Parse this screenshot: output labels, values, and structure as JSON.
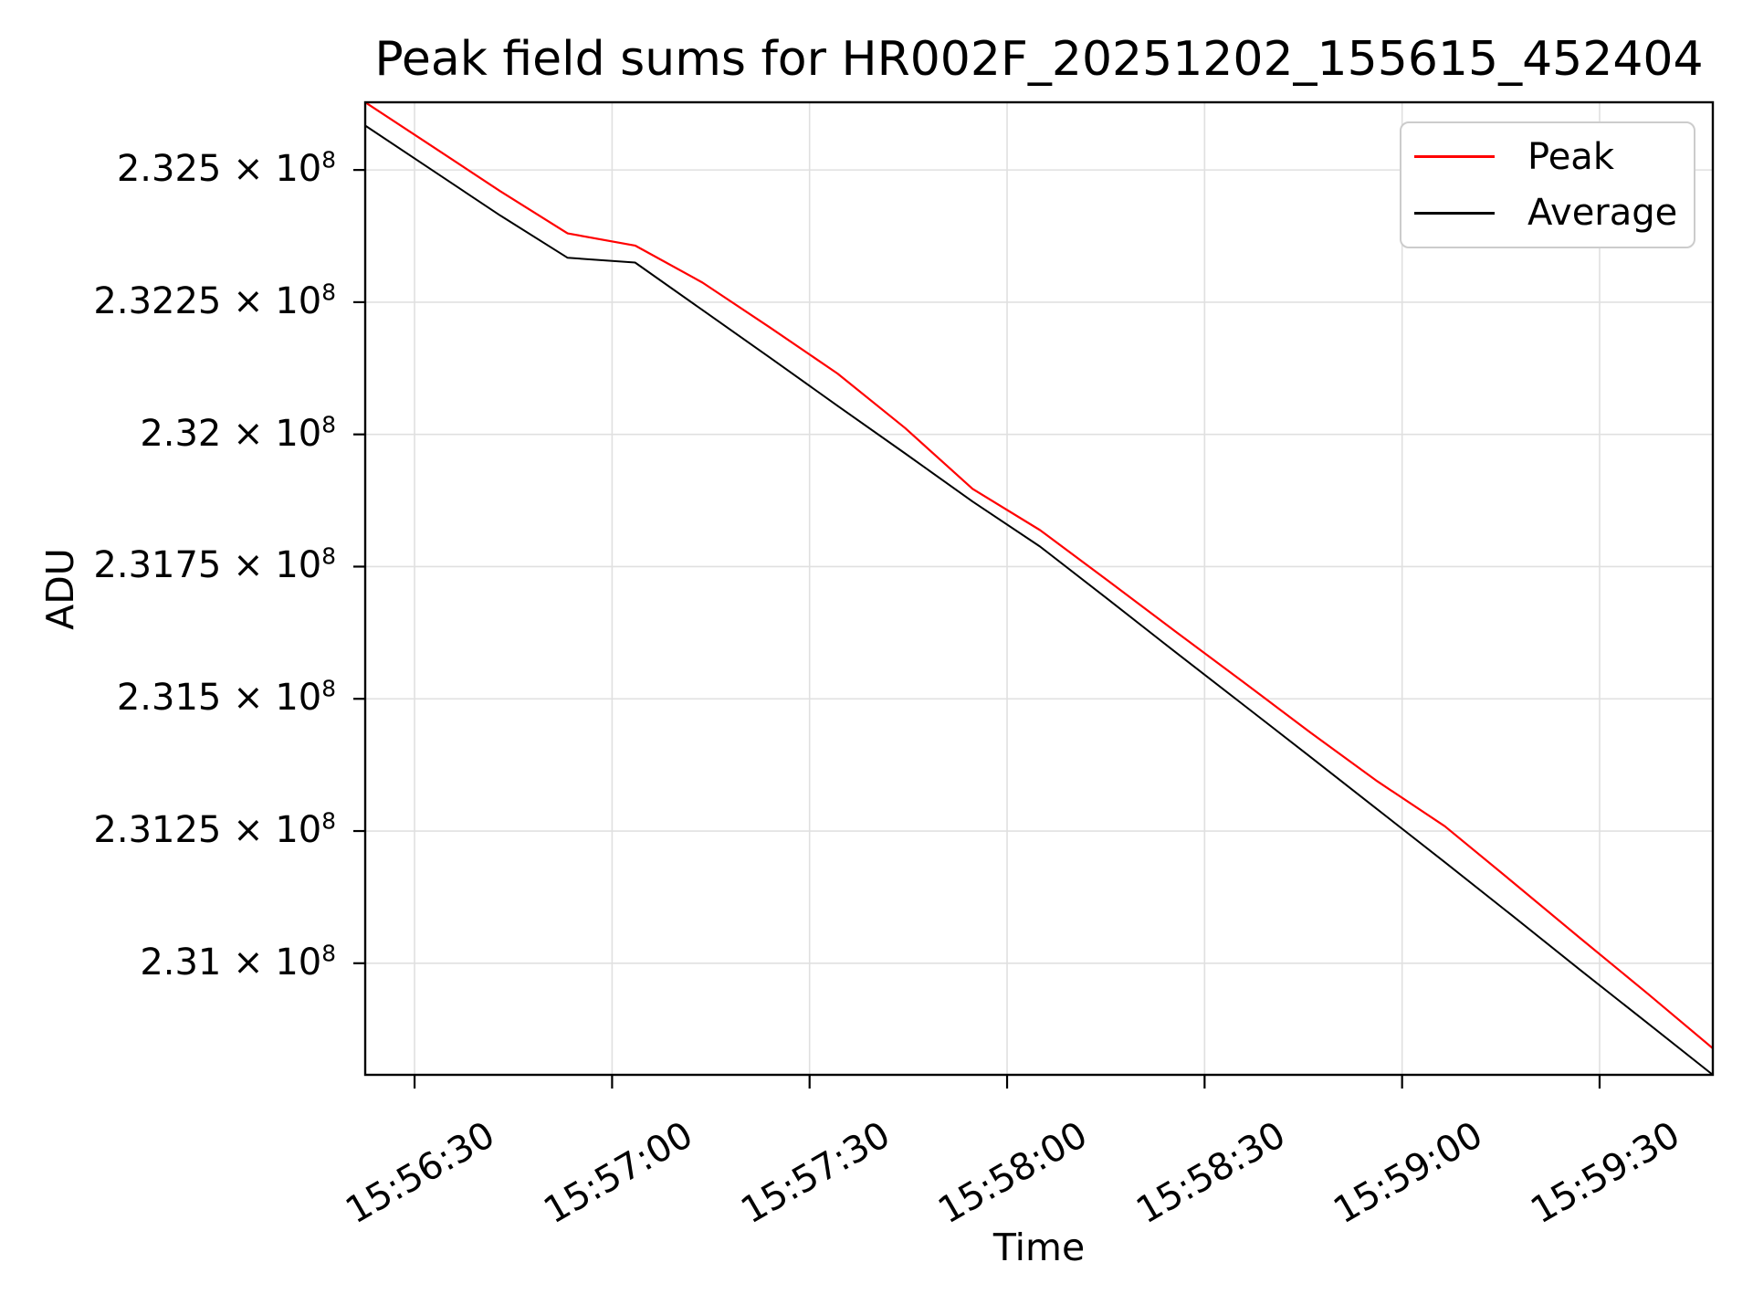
{
  "title": "Peak field sums for HR002F_20251202_155615_452404",
  "axes": {
    "x_label": "Time",
    "y_label": "ADU"
  },
  "legend": {
    "position": "upper right",
    "entries": [
      {
        "label": "Peak",
        "color": "#ff0000"
      },
      {
        "label": "Average",
        "color": "#000000"
      }
    ]
  },
  "colors": {
    "background": "#ffffff",
    "grid": "#e0e0e0",
    "spine": "#000000",
    "peak_line": "#ff0000",
    "average_line": "#000000",
    "text": "#000000"
  },
  "chart_data": {
    "type": "line",
    "title": "Peak field sums for HR002F_20251202_155615_452404",
    "xlabel": "Time",
    "ylabel": "ADU",
    "grid": true,
    "legend_position": "upper right",
    "x_unit": "seconds after 15:56:00",
    "xlim": [
      22.5,
      227.2
    ],
    "ylim": [
      230789000,
      232628000
    ],
    "x": [
      22.5,
      32.75,
      43,
      53.25,
      63.5,
      73.75,
      84,
      94.25,
      104.5,
      114.75,
      125,
      135.25,
      145.5,
      155.75,
      166,
      176.25,
      186.5,
      196.75,
      207,
      217.25,
      227.2
    ],
    "x_times": [
      "15:56:22",
      "15:56:33",
      "15:56:43",
      "15:56:53",
      "15:57:03",
      "15:57:14",
      "15:57:24",
      "15:57:34",
      "15:57:44",
      "15:57:55",
      "15:58:05",
      "15:58:15",
      "15:58:25",
      "15:58:36",
      "15:58:46",
      "15:58:56",
      "15:59:06",
      "15:59:17",
      "15:59:27",
      "15:59:37",
      "15:59:47"
    ],
    "series": [
      {
        "name": "Peak",
        "color": "#ff0000",
        "line_width": 2.2,
        "values": [
          232628000,
          232544000,
          232460000,
          232380000,
          232357000,
          232287000,
          232202000,
          232115000,
          232012000,
          231897000,
          231819000,
          231724000,
          231628000,
          231533000,
          231437000,
          231344000,
          231259000,
          231154000,
          231048000,
          230943000,
          230839000
        ]
      },
      {
        "name": "Average",
        "color": "#000000",
        "line_width": 2.0,
        "values": [
          232584000,
          232499000,
          232414000,
          232334000,
          232325000,
          232235000,
          232145000,
          232054000,
          231964000,
          231873000,
          231788000,
          231689000,
          231589000,
          231490000,
          231391000,
          231291000,
          231191000,
          231090000,
          230988000,
          230887000,
          230789000
        ]
      }
    ],
    "x_ticks": [
      {
        "t": 30,
        "label": "15:56:30"
      },
      {
        "t": 60,
        "label": "15:57:00"
      },
      {
        "t": 90,
        "label": "15:57:30"
      },
      {
        "t": 120,
        "label": "15:58:00"
      },
      {
        "t": 150,
        "label": "15:58:30"
      },
      {
        "t": 180,
        "label": "15:59:00"
      },
      {
        "t": 210,
        "label": "15:59:30"
      }
    ],
    "y_ticks": [
      {
        "value": 231000000,
        "label": "2.31 × 10^8"
      },
      {
        "value": 231250000,
        "label": "2.3125 × 10^8"
      },
      {
        "value": 231500000,
        "label": "2.315 × 10^8"
      },
      {
        "value": 231750000,
        "label": "2.3175 × 10^8"
      },
      {
        "value": 232000000,
        "label": "2.32 × 10^8"
      },
      {
        "value": 232250000,
        "label": "2.3225 × 10^8"
      },
      {
        "value": 232500000,
        "label": "2.325 × 10^8"
      }
    ]
  }
}
